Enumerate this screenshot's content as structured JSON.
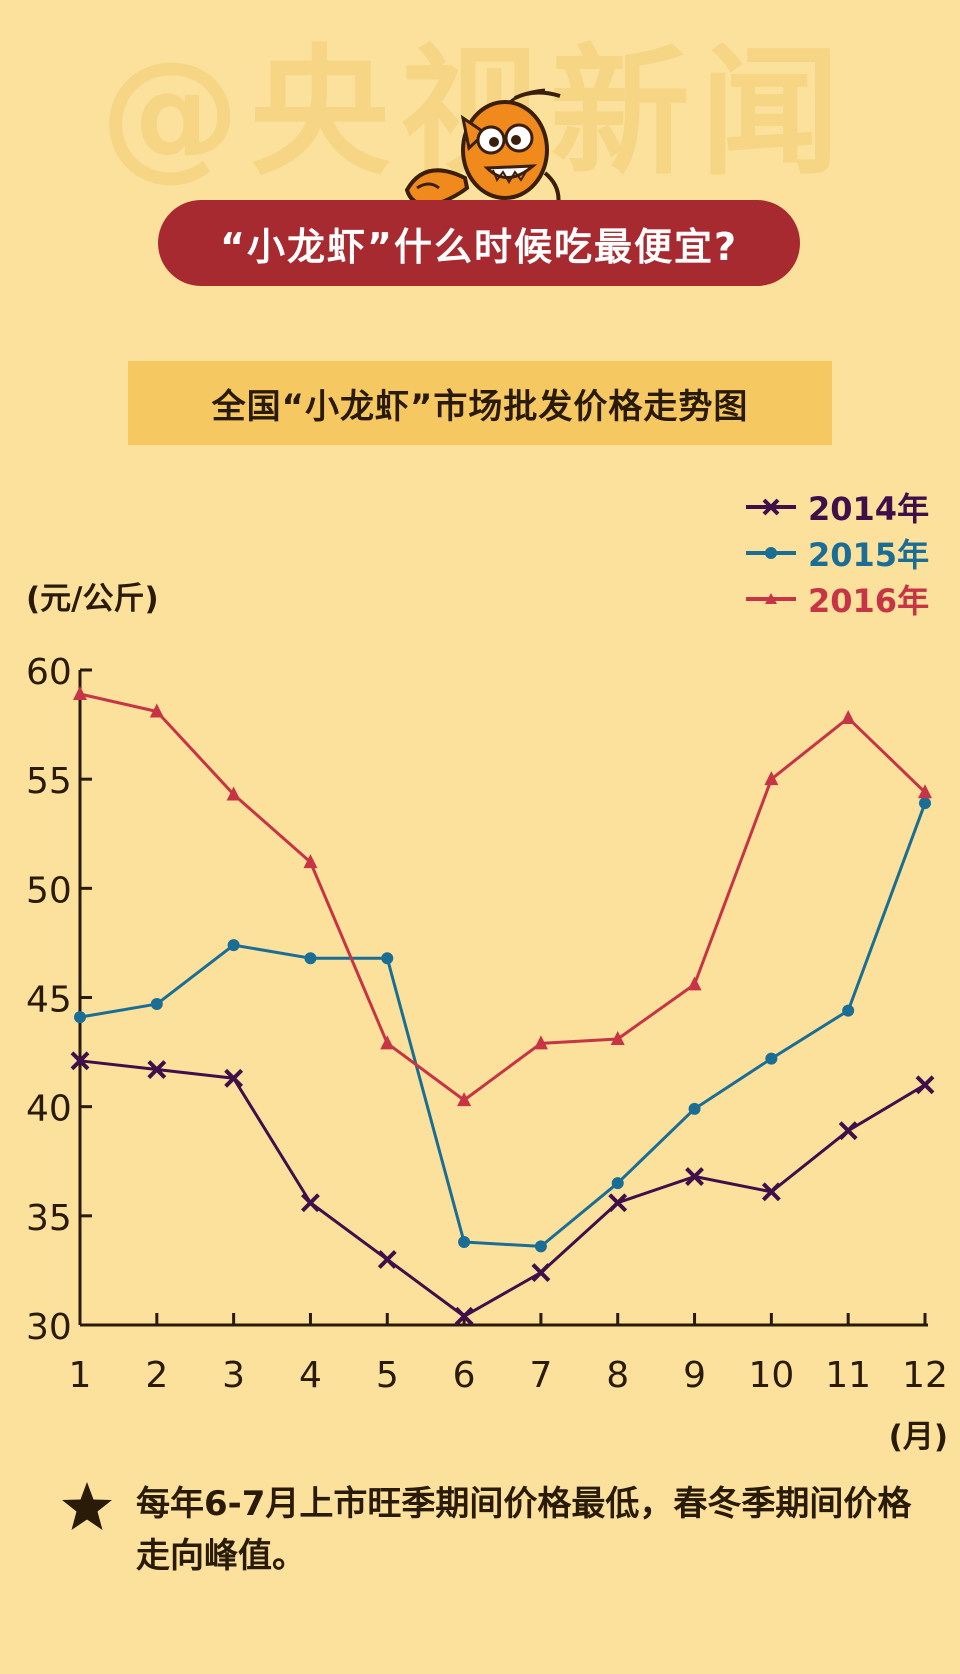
{
  "watermark": "@央视新闻",
  "title": "“小龙虾”什么时候吃最便宜?",
  "subtitle": "全国“小龙虾”市场批发价格走势图",
  "footnote": "每年6-7月上市旺季期间价格最低，春冬季期间价格走向峰值。",
  "colors": {
    "background": "#fbe19b",
    "banner": "#a82a31",
    "subtitle_box": "#f6c862",
    "axis": "#2a1a08"
  },
  "chart_data": {
    "type": "line",
    "ylabel": "(元/公斤)",
    "xlabel": "(月)",
    "ylim": [
      30,
      60
    ],
    "yticks": [
      30,
      35,
      40,
      45,
      50,
      55,
      60
    ],
    "categories": [
      "1",
      "2",
      "3",
      "4",
      "5",
      "6",
      "7",
      "8",
      "9",
      "10",
      "11",
      "12"
    ],
    "legend_position": "top-right",
    "grid": false,
    "series": [
      {
        "name": "2014年",
        "color": "#3f0f4a",
        "marker": "x",
        "values": [
          42.1,
          41.7,
          41.3,
          35.6,
          33.0,
          30.4,
          32.4,
          35.6,
          36.8,
          36.1,
          38.9,
          41.0
        ]
      },
      {
        "name": "2015年",
        "color": "#1a6e95",
        "marker": "circle",
        "values": [
          44.1,
          44.7,
          47.4,
          46.8,
          46.8,
          33.8,
          33.6,
          36.5,
          39.9,
          42.2,
          44.4,
          53.9
        ]
      },
      {
        "name": "2016年",
        "color": "#c63446",
        "marker": "triangle",
        "values": [
          58.9,
          58.1,
          54.3,
          51.2,
          42.9,
          40.3,
          42.9,
          43.1,
          45.6,
          55.0,
          57.8,
          54.4
        ]
      }
    ]
  }
}
